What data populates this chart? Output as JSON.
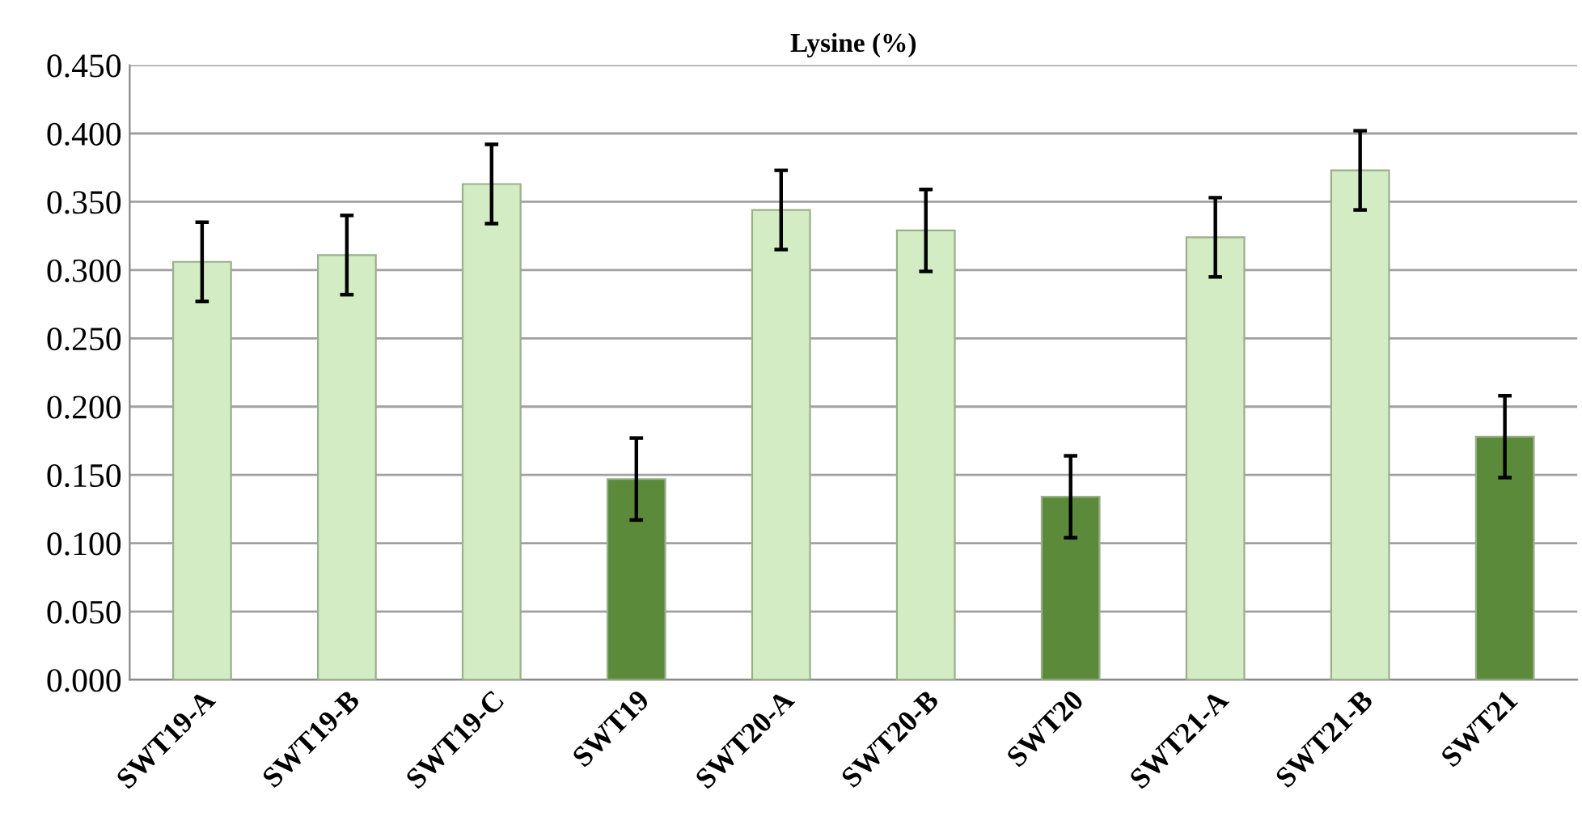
{
  "chart_data": {
    "type": "bar",
    "title": "Lysine (%)",
    "categories": [
      "SWT19-A",
      "SWT19-B",
      "SWT19-C",
      "SWT19",
      "SWT20-A",
      "SWT20-B",
      "SWT20",
      "SWT21-A",
      "SWT21-B",
      "SWT21"
    ],
    "values": [
      0.306,
      0.311,
      0.363,
      0.147,
      0.344,
      0.329,
      0.134,
      0.324,
      0.373,
      0.178
    ],
    "errors": [
      0.029,
      0.029,
      0.029,
      0.03,
      0.029,
      0.03,
      0.03,
      0.029,
      0.029,
      0.03
    ],
    "colors": [
      "#d3ecc3",
      "#d3ecc3",
      "#d3ecc3",
      "#5a8a3a",
      "#d3ecc3",
      "#d3ecc3",
      "#5a8a3a",
      "#d3ecc3",
      "#d3ecc3",
      "#5a8a3a"
    ],
    "ylim": [
      0,
      0.45
    ],
    "yticks": [
      {
        "value": 0,
        "label": "0.000"
      },
      {
        "value": 0.05,
        "label": "0.050"
      },
      {
        "value": 0.1,
        "label": "0.100"
      },
      {
        "value": 0.15,
        "label": "0.150"
      },
      {
        "value": 0.2,
        "label": "0.200"
      },
      {
        "value": 0.25,
        "label": "0.250"
      },
      {
        "value": 0.3,
        "label": "0.300"
      },
      {
        "value": 0.35,
        "label": "0.350"
      },
      {
        "value": 0.4,
        "label": "0.400"
      },
      {
        "value": 0.45,
        "label": "0.450"
      }
    ],
    "grid": "y"
  }
}
